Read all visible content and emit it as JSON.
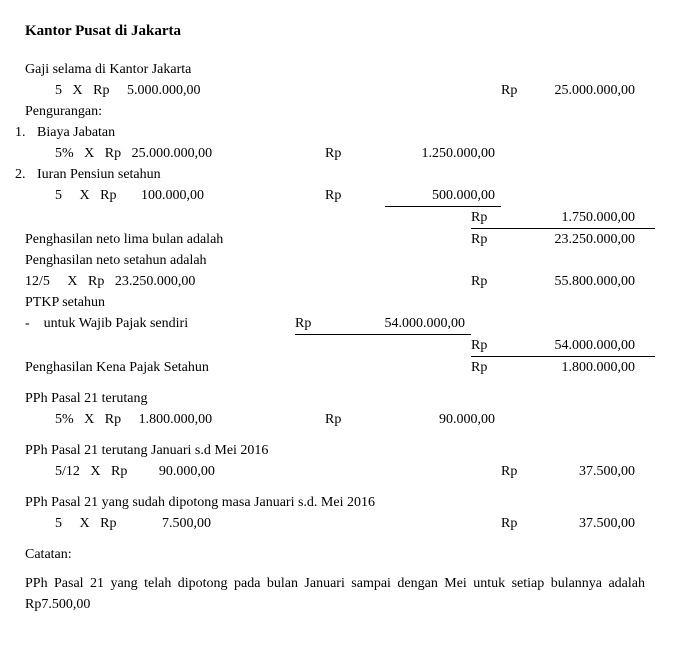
{
  "title": "Kantor Pusat di Jakarta",
  "rp": "Rp",
  "gaji": {
    "label": "Gaji selama di Kantor Jakarta",
    "calc": "5   X   Rp     5.000.000,00",
    "value": "25.000.000,00"
  },
  "pengurangan": {
    "label": "Pengurangan:",
    "item1": {
      "num": "1.",
      "label": "Biaya Jabatan",
      "calc": "5%   X   Rp   25.000.000,00",
      "value": "1.250.000,00"
    },
    "item2": {
      "num": "2.",
      "label": "Iuran Pensiun setahun",
      "calc": "5     X   Rp       100.000,00",
      "value": "500.000,00"
    },
    "total": "1.750.000,00"
  },
  "neto5": {
    "label": "Penghasilan neto lima bulan adalah",
    "value": "23.250.000,00"
  },
  "netoSetahun": {
    "label": "Penghasilan neto setahun adalah",
    "calc": "12/5     X   Rp   23.250.000,00",
    "value": "55.800.000,00"
  },
  "ptkp": {
    "label": "PTKP setahun",
    "sub": "-    untuk Wajib Pajak sendiri",
    "subvalue": "54.000.000,00",
    "total": "54.000.000,00"
  },
  "pkp": {
    "label": "Penghasilan Kena Pajak Setahun",
    "value": "1.800.000,00"
  },
  "pph21": {
    "label": "PPh Pasal 21 terutang",
    "calc": "5%   X   Rp     1.800.000,00",
    "value": "90.000,00"
  },
  "pph21jan": {
    "label": "PPh Pasal 21 terutang Januari s.d Mei 2016",
    "calc": "5/12   X   Rp         90.000,00",
    "value": "37.500,00"
  },
  "pph21dipotong": {
    "label": "PPh Pasal 21 yang sudah dipotong masa Januari s.d. Mei 2016",
    "calc": "5     X   Rp             7.500,00",
    "value": "37.500,00"
  },
  "catatan": {
    "title": "Catatan:",
    "text": "PPh Pasal 21 yang telah dipotong pada bulan Januari sampai dengan Mei untuk setiap bulannya adalah Rp7.500,00"
  }
}
